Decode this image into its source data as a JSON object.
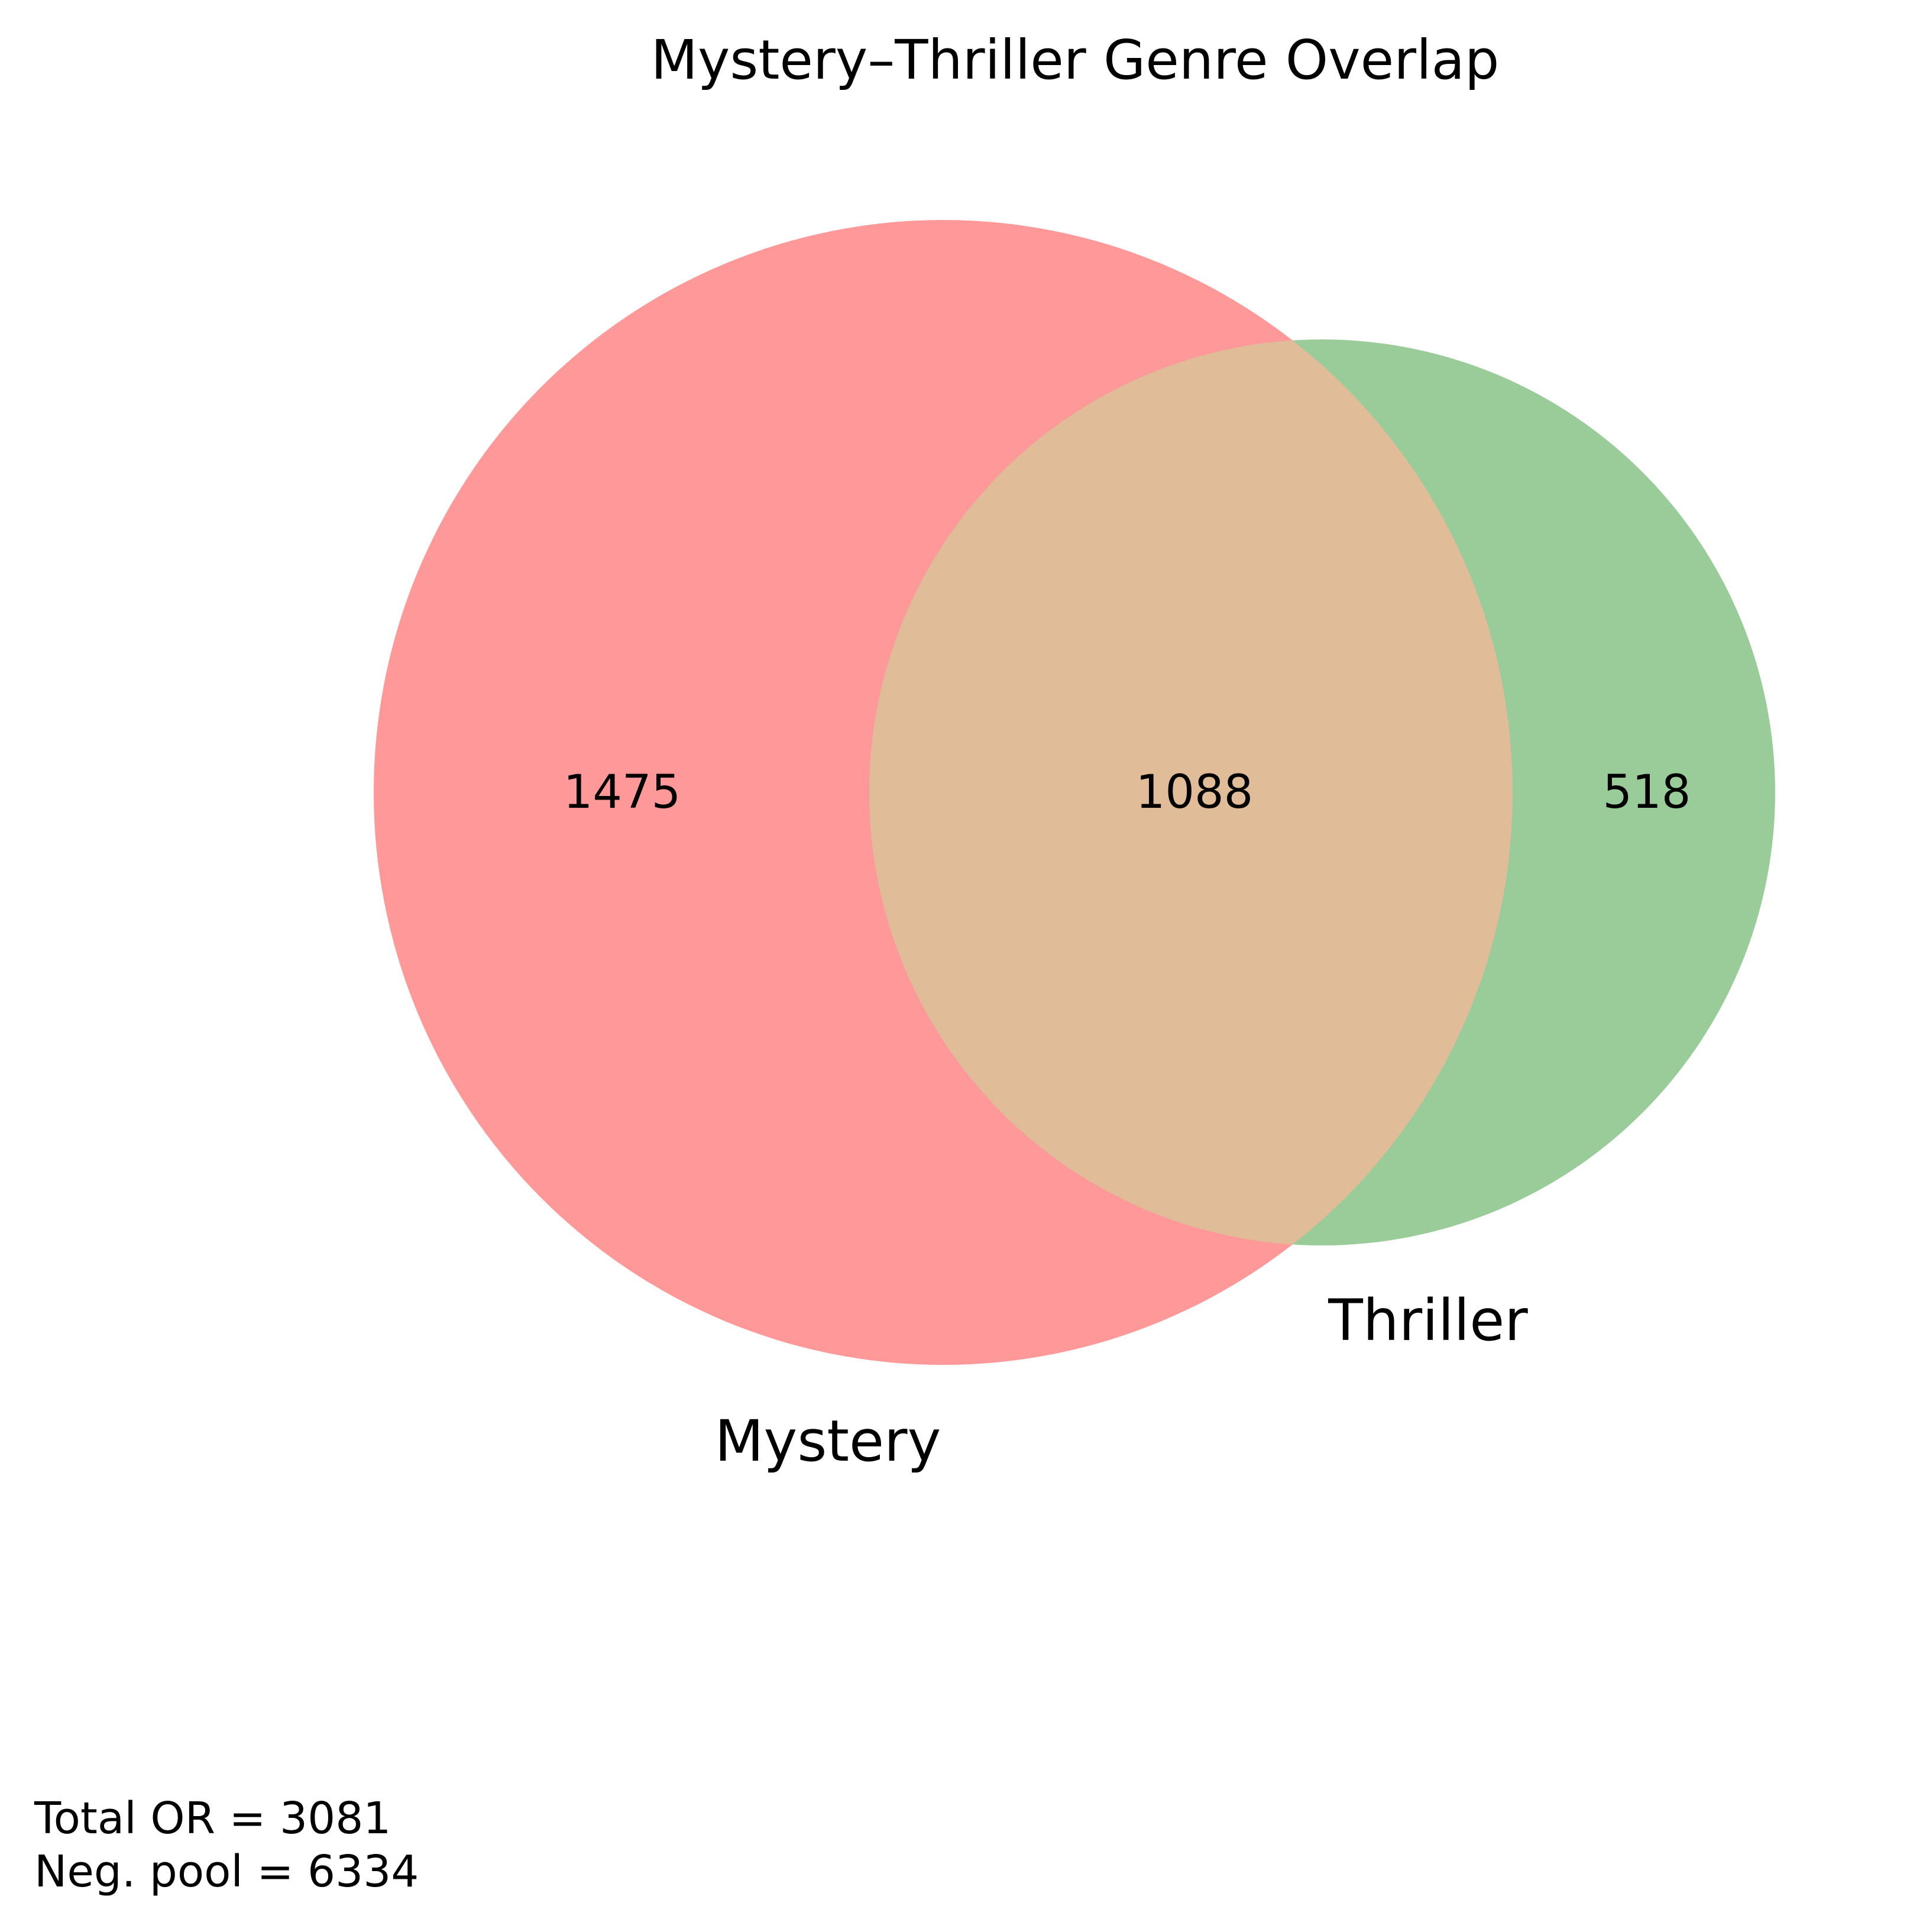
{
  "chart_data": {
    "type": "venn",
    "title": "Mystery–Thriller Genre Overlap",
    "sets": [
      {
        "name": "Mystery",
        "only_count": 1475,
        "color": "#ff9999"
      },
      {
        "name": "Thriller",
        "only_count": 518,
        "color": "#99cc99"
      }
    ],
    "intersection": {
      "count": 1088,
      "color": "#e0bc98"
    },
    "footnotes": {
      "total": "Total OR = 3081",
      "neg_pool": "Neg. pool = 6334"
    }
  }
}
